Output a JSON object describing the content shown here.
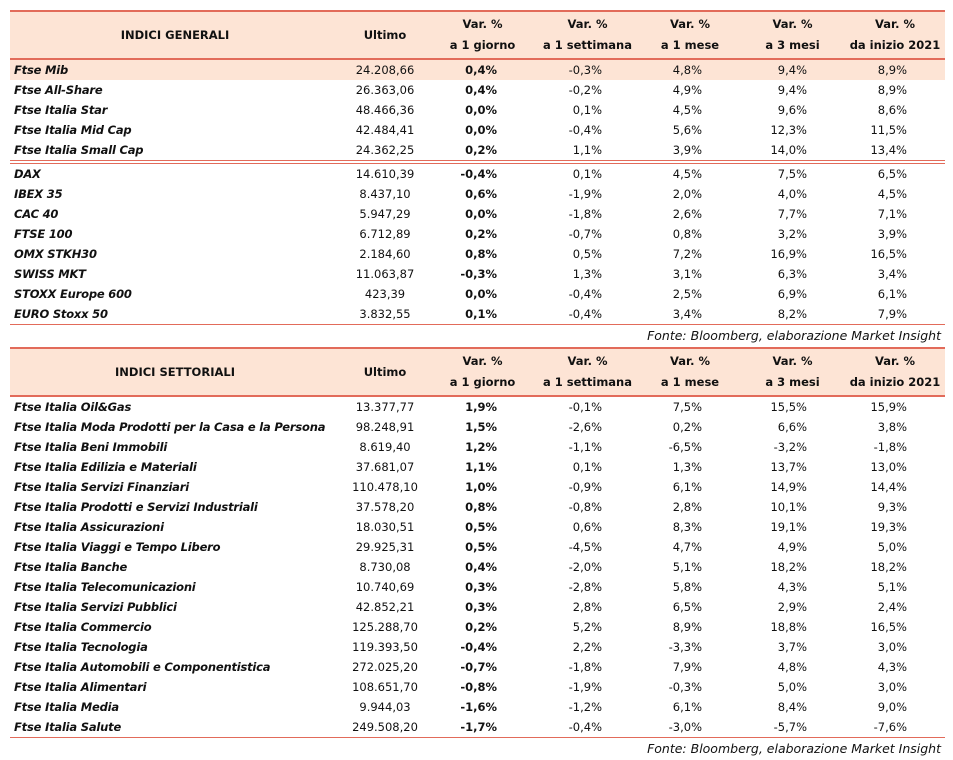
{
  "tables": [
    {
      "title": "INDICI GENERALI",
      "columns": [
        [
          "Ultimo"
        ],
        [
          "Var. %",
          "a 1 giorno"
        ],
        [
          "Var. %",
          "a 1 settimana"
        ],
        [
          "Var. %",
          "a 1 mese"
        ],
        [
          "Var. %",
          "a 3 mesi"
        ],
        [
          "Var. %",
          "da inizio 2021"
        ]
      ],
      "rows": [
        [
          "Ftse Mib",
          "24.208,66",
          "0,4%",
          "-0,3%",
          "4,8%",
          "9,4%",
          "8,9%"
        ],
        [
          "Ftse All-Share",
          "26.363,06",
          "0,4%",
          "-0,2%",
          "4,9%",
          "9,4%",
          "8,9%"
        ],
        [
          "Ftse Italia Star",
          "48.466,36",
          "0,0%",
          "0,1%",
          "4,5%",
          "9,6%",
          "8,6%"
        ],
        [
          "Ftse Italia Mid Cap",
          "42.484,41",
          "0,0%",
          "-0,4%",
          "5,6%",
          "12,3%",
          "11,5%"
        ],
        [
          "Ftse Italia Small Cap",
          "24.362,25",
          "0,2%",
          "1,1%",
          "3,9%",
          "14,0%",
          "13,4%"
        ],
        [
          "DAX",
          "14.610,39",
          "-0,4%",
          "0,1%",
          "4,5%",
          "7,5%",
          "6,5%"
        ],
        [
          "IBEX 35",
          "8.437,10",
          "0,6%",
          "-1,9%",
          "2,0%",
          "4,0%",
          "4,5%"
        ],
        [
          "CAC 40",
          "5.947,29",
          "0,0%",
          "-1,8%",
          "2,6%",
          "7,7%",
          "7,1%"
        ],
        [
          "FTSE 100",
          "6.712,89",
          "0,2%",
          "-0,7%",
          "0,8%",
          "3,2%",
          "3,9%"
        ],
        [
          "OMX STKH30",
          "2.184,60",
          "0,8%",
          "0,5%",
          "7,2%",
          "16,9%",
          "16,5%"
        ],
        [
          "SWISS MKT",
          "11.063,87",
          "-0,3%",
          "1,3%",
          "3,1%",
          "6,3%",
          "3,4%"
        ],
        [
          "STOXX Europe 600",
          "423,39",
          "0,0%",
          "-0,4%",
          "2,5%",
          "6,9%",
          "6,1%"
        ],
        [
          "EURO Stoxx 50",
          "3.832,55",
          "0,1%",
          "-0,4%",
          "3,4%",
          "8,2%",
          "7,9%"
        ]
      ],
      "source": "Fonte: Bloomberg, elaborazione Market Insight"
    },
    {
      "title": "INDICI SETTORIALI",
      "columns": [
        [
          "Ultimo"
        ],
        [
          "Var. %",
          "a 1 giorno"
        ],
        [
          "Var. %",
          "a 1 settimana"
        ],
        [
          "Var. %",
          "a 1 mese"
        ],
        [
          "Var. %",
          "a 3 mesi"
        ],
        [
          "Var. %",
          "da inizio 2021"
        ]
      ],
      "rows": [
        [
          "Ftse Italia Oil&Gas",
          "13.377,77",
          "1,9%",
          "-0,1%",
          "7,5%",
          "15,5%",
          "15,9%"
        ],
        [
          "Ftse Italia Moda Prodotti per la Casa e la Persona",
          "98.248,91",
          "1,5%",
          "-2,6%",
          "0,2%",
          "6,6%",
          "3,8%"
        ],
        [
          "Ftse Italia Beni Immobili",
          "8.619,40",
          "1,2%",
          "-1,1%",
          "-6,5%",
          "-3,2%",
          "-1,8%"
        ],
        [
          "Ftse Italia Edilizia e Materiali",
          "37.681,07",
          "1,1%",
          "0,1%",
          "1,3%",
          "13,7%",
          "13,0%"
        ],
        [
          "Ftse Italia Servizi Finanziari",
          "110.478,10",
          "1,0%",
          "-0,9%",
          "6,1%",
          "14,9%",
          "14,4%"
        ],
        [
          "Ftse Italia Prodotti e Servizi Industriali",
          "37.578,20",
          "0,8%",
          "-0,8%",
          "2,8%",
          "10,1%",
          "9,3%"
        ],
        [
          "Ftse Italia Assicurazioni",
          "18.030,51",
          "0,5%",
          "0,6%",
          "8,3%",
          "19,1%",
          "19,3%"
        ],
        [
          "Ftse Italia Viaggi e Tempo Libero",
          "29.925,31",
          "0,5%",
          "-4,5%",
          "4,7%",
          "4,9%",
          "5,0%"
        ],
        [
          "Ftse Italia Banche",
          "8.730,08",
          "0,4%",
          "-2,0%",
          "5,1%",
          "18,2%",
          "18,2%"
        ],
        [
          "Ftse Italia Telecomunicazioni",
          "10.740,69",
          "0,3%",
          "-2,8%",
          "5,8%",
          "4,3%",
          "5,1%"
        ],
        [
          "Ftse Italia Servizi Pubblici",
          "42.852,21",
          "0,3%",
          "2,8%",
          "6,5%",
          "2,9%",
          "2,4%"
        ],
        [
          "Ftse Italia Commercio",
          "125.288,70",
          "0,2%",
          "5,2%",
          "8,9%",
          "18,8%",
          "16,5%"
        ],
        [
          "Ftse Italia Tecnologia",
          "119.393,50",
          "-0,4%",
          "2,2%",
          "-3,3%",
          "3,7%",
          "3,0%"
        ],
        [
          "Ftse Italia Automobili e Componentistica",
          "272.025,20",
          "-0,7%",
          "-1,8%",
          "7,9%",
          "4,8%",
          "4,3%"
        ],
        [
          "Ftse Italia Alimentari",
          "108.651,70",
          "-0,8%",
          "-1,9%",
          "-0,3%",
          "5,0%",
          "3,0%"
        ],
        [
          "Ftse Italia Media",
          "9.944,03",
          "-1,6%",
          "-1,2%",
          "6,1%",
          "8,4%",
          "9,0%"
        ],
        [
          "Ftse Italia Salute",
          "249.508,20",
          "-1,7%",
          "-0,4%",
          "-3,0%",
          "-5,7%",
          "-7,6%"
        ]
      ],
      "source": "Fonte: Bloomberg, elaborazione Market Insight"
    }
  ]
}
